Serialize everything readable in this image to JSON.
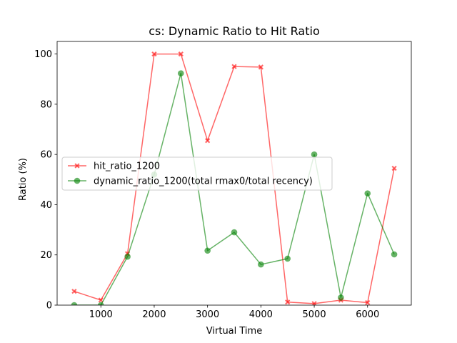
{
  "chart_data": {
    "type": "line",
    "title": "cs: Dynamic Ratio to Hit Ratio",
    "xlabel": "Virtual Time",
    "ylabel": "Ratio (%)",
    "xlim": [
      180,
      6820
    ],
    "ylim": [
      0,
      105
    ],
    "x_ticks": [
      1000,
      2000,
      3000,
      4000,
      5000,
      6000
    ],
    "y_ticks": [
      0,
      20,
      40,
      60,
      80,
      100
    ],
    "grid": false,
    "legend_position": "center-left",
    "x": [
      500,
      1000,
      1500,
      2000,
      2500,
      3000,
      3500,
      4000,
      4500,
      5000,
      5500,
      6000,
      6500
    ],
    "series": [
      {
        "name": "hit_ratio_1200",
        "color": "#ff0000",
        "marker": "x",
        "values": [
          5.5,
          2.0,
          20.5,
          100.0,
          100.0,
          65.5,
          95.0,
          94.8,
          1.2,
          0.6,
          2.0,
          1.0,
          54.5
        ]
      },
      {
        "name": "dynamic_ratio_1200(total rmax0/total recency)",
        "color": "#008000",
        "marker": "o",
        "values": [
          0.0,
          0.0,
          19.3,
          52.0,
          92.3,
          21.7,
          29.0,
          16.2,
          18.5,
          60.0,
          3.0,
          44.5,
          20.2
        ]
      }
    ]
  }
}
